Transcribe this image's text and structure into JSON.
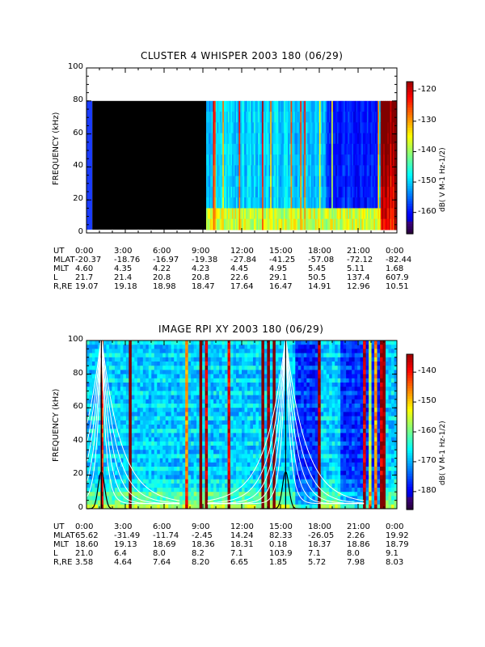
{
  "chart_data": [
    {
      "type": "heatmap",
      "title": "CLUSTER 4 WHISPER 2003 180 (06/29)",
      "ylabel": "FREQUENCY (kHz)",
      "ylim": [
        0,
        100
      ],
      "yticks": [
        "0",
        "20",
        "40",
        "60",
        "80",
        "100"
      ],
      "xlim_hours": [
        0,
        24
      ],
      "data_freq_ceiling_khz": 80,
      "data_gap_hours": [
        0.45,
        9.25
      ],
      "colorbar": {
        "label": "dB( V M⁻¹ Hz⁻¹⼍²)",
        "label_text": "dB( V M-1 Hz-1/2)",
        "range": [
          -167,
          -117
        ],
        "ticks": [
          "-120",
          "-130",
          "-140",
          "-150",
          "-160"
        ]
      },
      "ephemeris": {
        "row_labels": [
          "UT",
          "MLAT",
          "MLT",
          "L",
          "R,RE"
        ],
        "columns": [
          {
            "UT": "0:00",
            "MLAT": "-20.37",
            "MLT": "4.60",
            "L": "21.7",
            "R,RE": "19.07"
          },
          {
            "UT": "3:00",
            "MLAT": "-18.76",
            "MLT": "4.35",
            "L": "21.4",
            "R,RE": "19.18"
          },
          {
            "UT": "6:00",
            "MLAT": "-16.97",
            "MLT": "4.22",
            "L": "20.8",
            "R,RE": "18.98"
          },
          {
            "UT": "9:00",
            "MLAT": "-19.38",
            "MLT": "4.23",
            "L": "20.8",
            "R,RE": "18.47"
          },
          {
            "UT": "12:00",
            "MLAT": "-27.84",
            "MLT": "4.45",
            "L": "22.6",
            "R,RE": "17.64"
          },
          {
            "UT": "15:00",
            "MLAT": "-41.25",
            "MLT": "4.95",
            "L": "29.1",
            "R,RE": "16.47"
          },
          {
            "UT": "18:00",
            "MLAT": "-57.08",
            "MLT": "5.45",
            "L": "50.5",
            "R,RE": "14.91"
          },
          {
            "UT": "21:00",
            "MLAT": "-72.12",
            "MLT": "5.11",
            "L": "137.4",
            "R,RE": "12.96"
          },
          {
            "UT": "0:00",
            "MLAT": "-82.44",
            "MLT": "1.68",
            "L": "607.9",
            "R,RE": "10.51"
          }
        ]
      }
    },
    {
      "type": "heatmap",
      "title": "IMAGE RPI XY 2003 180 (06/29)",
      "ylabel": "FREQUENCY (kHz)",
      "ylim": [
        0,
        100
      ],
      "yticks": [
        "0",
        "20",
        "40",
        "60",
        "80",
        "100"
      ],
      "xlim_hours": [
        0,
        24
      ],
      "overlay_curves": "white and black frequency contour lines",
      "colorbar": {
        "label_text": "dB( V M-1 Hz-1/2)",
        "range": [
          -186,
          -134
        ],
        "ticks": [
          "-140",
          "-150",
          "-160",
          "-170",
          "-180"
        ]
      },
      "ephemeris": {
        "row_labels": [
          "UT",
          "MLAT",
          "MLT",
          "L",
          "R,RE"
        ],
        "columns": [
          {
            "UT": "0:00",
            "MLAT": "65.62",
            "MLT": "18.60",
            "L": "21.0",
            "R,RE": "3.58"
          },
          {
            "UT": "3:00",
            "MLAT": "-31.49",
            "MLT": "19.13",
            "L": "6.4",
            "R,RE": "4.64"
          },
          {
            "UT": "6:00",
            "MLAT": "-11.74",
            "MLT": "18.69",
            "L": "8.0",
            "R,RE": "7.64"
          },
          {
            "UT": "9:00",
            "MLAT": "-2.45",
            "MLT": "18.36",
            "L": "8.2",
            "R,RE": "8.20"
          },
          {
            "UT": "12:00",
            "MLAT": "14.24",
            "MLT": "18.31",
            "L": "7.1",
            "R,RE": "6.65"
          },
          {
            "UT": "15:00",
            "MLAT": "82.33",
            "MLT": "0.18",
            "L": "103.9",
            "R,RE": "1.85"
          },
          {
            "UT": "18:00",
            "MLAT": "-26.05",
            "MLT": "18.37",
            "L": "7.1",
            "R,RE": "5.72"
          },
          {
            "UT": "21:00",
            "MLAT": "2.26",
            "MLT": "18.86",
            "L": "8.0",
            "R,RE": "7.98"
          },
          {
            "UT": "0:00",
            "MLAT": "19.92",
            "MLT": "18.79",
            "L": "9.1",
            "R,RE": "8.03"
          }
        ]
      }
    }
  ]
}
